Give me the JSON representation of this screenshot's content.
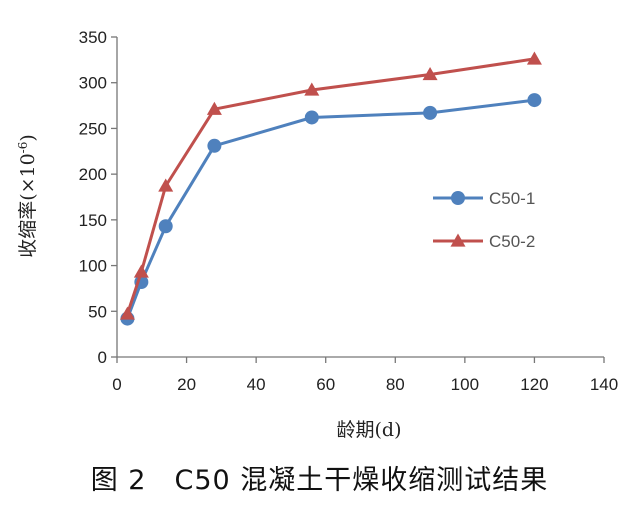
{
  "caption": "图 2　C50 混凝土干燥收缩测试结果",
  "chart_data": {
    "type": "line",
    "xlabel": "龄期(d)",
    "ylabel_text": "收缩率(×10",
    "ylabel_exp": "-6",
    "ylabel_close": ")",
    "xlim": [
      0,
      140
    ],
    "ylim": [
      0,
      350
    ],
    "xticks": [
      0,
      20,
      40,
      60,
      80,
      100,
      120,
      140
    ],
    "yticks": [
      0,
      50,
      100,
      150,
      200,
      250,
      300,
      350
    ],
    "grid": false,
    "legend_position": "right",
    "series": [
      {
        "name": "C50-1",
        "color": "#4F81BD",
        "marker": "circle",
        "x": [
          3,
          7,
          14,
          28,
          56,
          90,
          120
        ],
        "y": [
          42,
          82,
          143,
          231,
          262,
          267,
          281
        ]
      },
      {
        "name": "C50-2",
        "color": "#C0504D",
        "marker": "triangle",
        "x": [
          3,
          7,
          14,
          28,
          56,
          90,
          120
        ],
        "y": [
          47,
          93,
          187,
          271,
          292,
          309,
          326
        ]
      }
    ]
  }
}
